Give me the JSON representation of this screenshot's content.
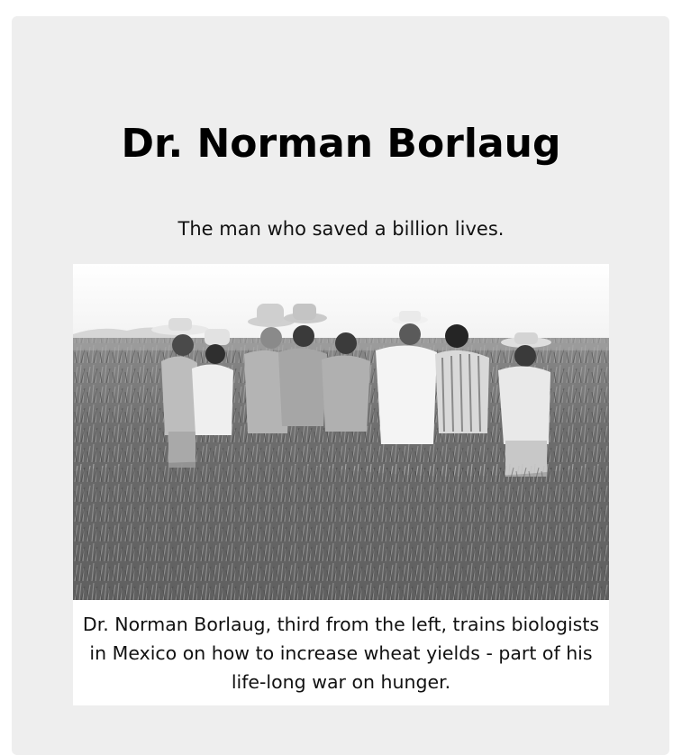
{
  "page": {
    "title": "Dr. Norman Borlaug",
    "tagline": "The man who saved a billion lives."
  },
  "image": {
    "alt": "Dr. Norman Borlaug, third from the left, trains biologists in Mexico on how to increase wheat yields",
    "caption": "Dr. Norman Borlaug, third from the left, trains biologists in Mexico on how to increase wheat yields - part of his life-long war on hunger."
  },
  "colors": {
    "card_background": "#eeeeee",
    "page_background": "#ffffff",
    "text": "#000000"
  }
}
